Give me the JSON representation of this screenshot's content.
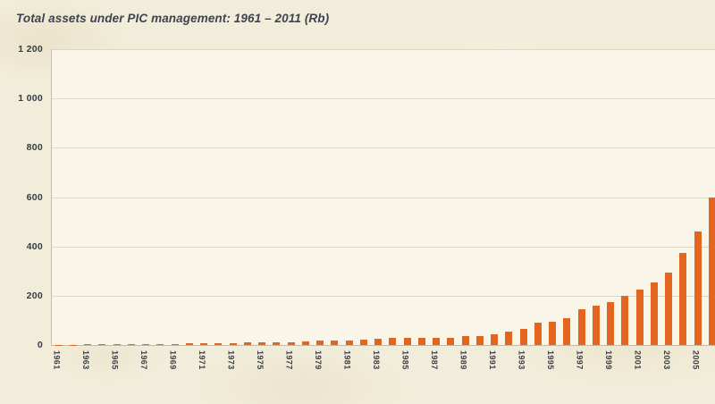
{
  "chart": {
    "title": "Total assets under PIC management: 1961 – 2011 (Rb)"
  },
  "colors": {
    "bar": "#e2661f",
    "page_background": "#f2edda",
    "plot_background": "#f9f6e9",
    "gridline": "#dcd7c2",
    "title_text": "#3e434d",
    "axis_text": "#3a3e47"
  },
  "chart_data": {
    "type": "bar",
    "title": "Total assets under PIC management: 1961 – 2011 (Rb)",
    "xlabel": "",
    "ylabel": "",
    "ylim": [
      0,
      1200
    ],
    "grid": true,
    "y_ticks": [
      0,
      200,
      400,
      600,
      800,
      1000,
      1200
    ],
    "y_tick_labels": [
      "0",
      "200",
      "400",
      "600",
      "800",
      "1 000",
      "1 200"
    ],
    "x_tick_labels": [
      "1961",
      "1963",
      "1965",
      "1967",
      "1969",
      "1971",
      "1973",
      "1975",
      "1977",
      "1979",
      "1981",
      "1983",
      "1985",
      "1987",
      "1989",
      "1991",
      "1993",
      "1995",
      "1997",
      "1999",
      "2001",
      "2003",
      "2005"
    ],
    "categories": [
      "1961",
      "1962",
      "1963",
      "1964",
      "1965",
      "1966",
      "1967",
      "1968",
      "1969",
      "1970",
      "1971",
      "1972",
      "1973",
      "1974",
      "1975",
      "1976",
      "1977",
      "1978",
      "1979",
      "1980",
      "1981",
      "1982",
      "1983",
      "1984",
      "1985",
      "1986",
      "1987",
      "1988",
      "1989",
      "1990",
      "1991",
      "1992",
      "1993",
      "1994",
      "1995",
      "1996",
      "1997",
      "1998",
      "1999",
      "2000",
      "2001",
      "2002",
      "2003",
      "2004",
      "2005",
      "2006"
    ],
    "values": [
      1,
      1,
      2,
      2,
      2,
      3,
      3,
      4,
      5,
      6,
      7,
      8,
      9,
      10,
      10,
      11,
      12,
      16,
      18,
      18,
      19,
      20,
      25,
      28,
      28,
      30,
      30,
      30,
      35,
      35,
      45,
      55,
      65,
      90,
      95,
      110,
      145,
      160,
      175,
      200,
      225,
      255,
      295,
      375,
      460,
      600
    ],
    "note_visible_range": "chart is cropped at right edge; bars visible through 2006"
  }
}
